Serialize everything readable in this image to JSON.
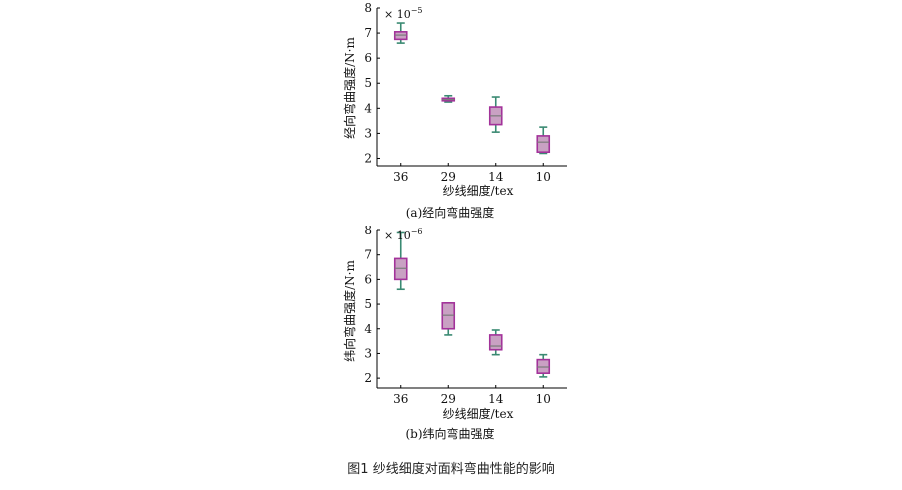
{
  "figure": {
    "caption": "图1   纱线细度对面料弯曲性能的影响"
  },
  "colors": {
    "box_fill": "#c9a1c3",
    "box_edge": "#a3329a",
    "whisker": "#3a8a72",
    "median": "#7a7a7a",
    "axis": "#000000"
  },
  "chart_data": [
    {
      "type": "box",
      "panel_caption": "(a)经向弯曲强度",
      "xlabel": "纱线细度/tex",
      "ylabel": "经向弯曲强度/N·m",
      "multiplier": "× 10",
      "multiplier_exp": "−5",
      "categories": [
        "36",
        "29",
        "14",
        "10"
      ],
      "ylim": [
        1.7,
        8
      ],
      "yticks": [
        "2",
        "3",
        "4",
        "5",
        "6",
        "7",
        "8"
      ],
      "boxes": [
        {
          "min": 6.6,
          "q1": 6.75,
          "median": 6.92,
          "q3": 7.05,
          "max": 7.4
        },
        {
          "min": 4.25,
          "q1": 4.3,
          "median": 4.35,
          "q3": 4.4,
          "max": 4.5
        },
        {
          "min": 3.05,
          "q1": 3.35,
          "median": 3.7,
          "q3": 4.05,
          "max": 4.45
        },
        {
          "min": 2.2,
          "q1": 2.25,
          "median": 2.65,
          "q3": 2.9,
          "max": 3.25
        }
      ]
    },
    {
      "type": "box",
      "panel_caption": "(b)纬向弯曲强度",
      "xlabel": "纱线细度/tex",
      "ylabel": "纬向弯曲强度/N·m",
      "multiplier": "× 10",
      "multiplier_exp": "−6",
      "categories": [
        "36",
        "29",
        "14",
        "10"
      ],
      "ylim": [
        1.6,
        8
      ],
      "yticks": [
        "2",
        "3",
        "4",
        "5",
        "6",
        "7",
        "8"
      ],
      "boxes": [
        {
          "min": 5.6,
          "q1": 6.0,
          "median": 6.45,
          "q3": 6.85,
          "max": 7.9
        },
        {
          "min": 3.75,
          "q1": 4.0,
          "median": 4.55,
          "q3": 5.05,
          "max": 5.05
        },
        {
          "min": 2.95,
          "q1": 3.15,
          "median": 3.3,
          "q3": 3.75,
          "max": 3.95
        },
        {
          "min": 2.05,
          "q1": 2.2,
          "median": 2.45,
          "q3": 2.75,
          "max": 2.95
        }
      ]
    }
  ]
}
